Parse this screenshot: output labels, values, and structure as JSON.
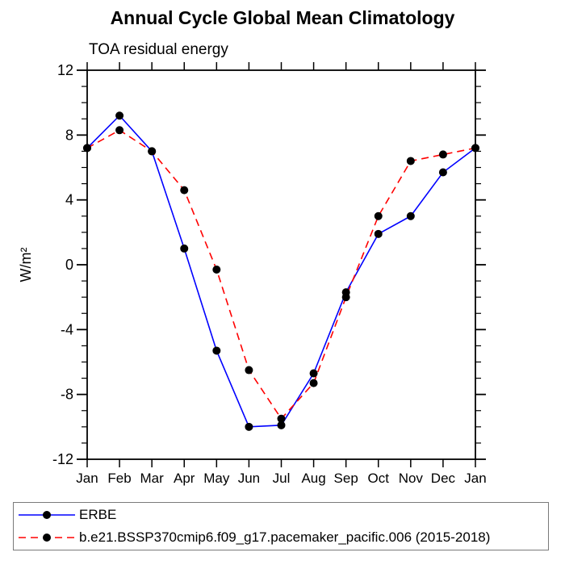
{
  "header": {
    "title": "Annual Cycle Global Mean Climatology",
    "subtitle": "TOA residual energy"
  },
  "chart_data": {
    "type": "line",
    "title": "Annual Cycle Global Mean Climatology",
    "subtitle": "TOA residual energy",
    "xlabel": "",
    "ylabel": "W/m²",
    "ylim": [
      -12,
      12
    ],
    "yticks_major": [
      -12,
      -8,
      -4,
      0,
      4,
      8,
      12
    ],
    "ytick_minor_step": 1,
    "grid": false,
    "legend_position": "bottom-box",
    "categories": [
      "Jan",
      "Feb",
      "Mar",
      "Apr",
      "May",
      "Jun",
      "Jul",
      "Aug",
      "Sep",
      "Oct",
      "Nov",
      "Dec",
      "Jan"
    ],
    "series": [
      {
        "name": "ERBE",
        "color": "#0000ff",
        "line_style": "solid",
        "marker": "filled-circle",
        "marker_color": "#000000",
        "values": [
          7.2,
          9.2,
          7.0,
          1.0,
          -5.3,
          -10.0,
          -9.9,
          -6.7,
          -1.7,
          1.9,
          3.0,
          5.7,
          7.2
        ]
      },
      {
        "name": "b.e21.BSSP370cmip6.f09_g17.pacemaker_pacific.006 (2015-2018)",
        "color": "#ff0000",
        "line_style": "dashed",
        "marker": "filled-circle",
        "marker_color": "#000000",
        "values": [
          7.2,
          8.3,
          7.0,
          4.6,
          -0.3,
          -6.5,
          -9.5,
          -7.3,
          -2.0,
          3.0,
          6.4,
          6.8,
          7.2
        ]
      }
    ],
    "axis_color": "#000000"
  }
}
